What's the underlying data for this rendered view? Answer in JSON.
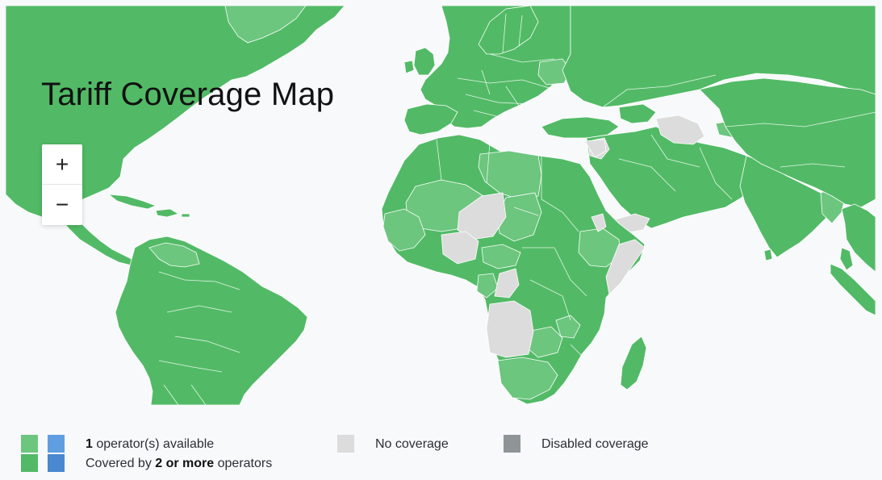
{
  "map": {
    "title": "Tariff Coverage Map",
    "zoom_in_label": "+",
    "zoom_out_label": "−"
  },
  "legend": {
    "one_operator": {
      "count": "1",
      "text": " operator(s) available"
    },
    "multi_operator": {
      "prefix": "Covered by ",
      "bold": "2 or more",
      "suffix": " operators"
    },
    "no_coverage": "No coverage",
    "disabled": "Disabled coverage"
  },
  "colors": {
    "two_or_more_green": "#52ba66",
    "one_operator_green": "#6cc67e",
    "one_operator_blue": "#5f9ee0",
    "two_or_more_blue": "#4a88cf",
    "no_coverage": "#dcdcdc",
    "disabled": "#8f9496",
    "ocean": "#f7f9fb"
  }
}
